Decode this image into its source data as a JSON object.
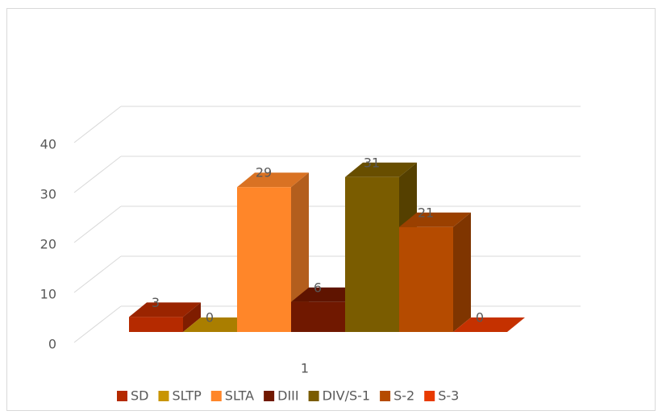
{
  "chart_data": {
    "type": "bar3d",
    "categories": [
      "1"
    ],
    "series": [
      {
        "name": "SD",
        "color": "#b52a00",
        "values": [
          3
        ]
      },
      {
        "name": "SLTP",
        "color": "#c89400",
        "values": [
          0
        ]
      },
      {
        "name": "SLTA",
        "color": "#ff8629",
        "values": [
          29
        ]
      },
      {
        "name": "DIII",
        "color": "#701800",
        "values": [
          6
        ]
      },
      {
        "name": "DIV/S-1",
        "color": "#7a5c00",
        "values": [
          31
        ]
      },
      {
        "name": "S-2",
        "color": "#b54b00",
        "values": [
          21
        ]
      },
      {
        "name": "S-3",
        "color": "#e83a00",
        "values": [
          0
        ]
      }
    ],
    "ylim": [
      0,
      40
    ],
    "yticks": [
      0,
      10,
      20,
      30,
      40
    ],
    "grid": true,
    "legend": "bottom"
  }
}
